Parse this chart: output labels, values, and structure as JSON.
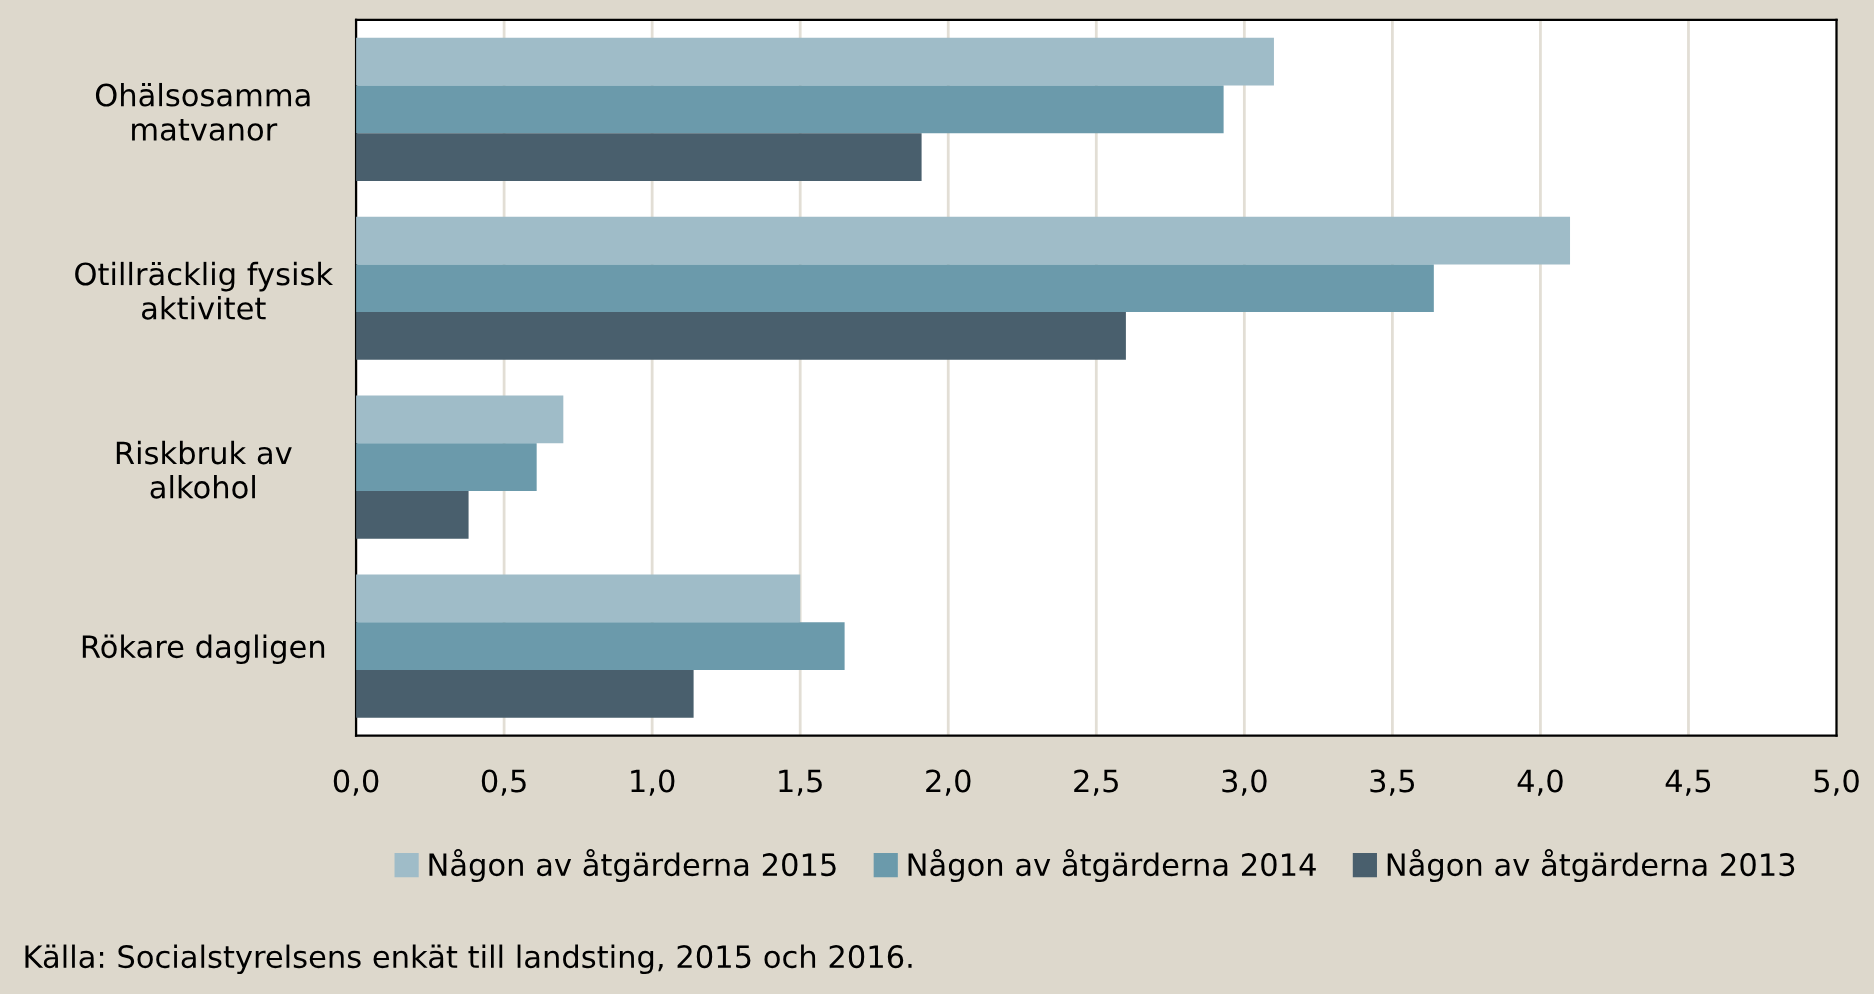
{
  "chart_data": {
    "type": "bar",
    "orientation": "horizontal",
    "categories": [
      "Ohälsosamma\nmatvanor",
      "Otillräcklig fysisk\naktivitet",
      "Riskbruk av\nalkohol",
      "Rökare dagligen"
    ],
    "series": [
      {
        "name": "Någon av åtgärderna 2015",
        "color": "#9fbcc8",
        "values": [
          3.1,
          4.1,
          0.7,
          1.5
        ]
      },
      {
        "name": "Någon av åtgärderna 2014",
        "color": "#6b9aab",
        "values": [
          2.93,
          3.64,
          0.61,
          1.65
        ]
      },
      {
        "name": "Någon av åtgärderna 2013",
        "color": "#495f6d",
        "values": [
          1.91,
          2.6,
          0.38,
          1.14
        ]
      }
    ],
    "xlim": [
      0,
      5
    ],
    "xticks": [
      {
        "value": 0,
        "label": "0,0"
      },
      {
        "value": 0.5,
        "label": "0,5"
      },
      {
        "value": 1,
        "label": "1,0"
      },
      {
        "value": 1.5,
        "label": "1,5"
      },
      {
        "value": 2,
        "label": "2,0"
      },
      {
        "value": 2.5,
        "label": "2,5"
      },
      {
        "value": 3,
        "label": "3,0"
      },
      {
        "value": 3.5,
        "label": "3,5"
      },
      {
        "value": 4,
        "label": "4,0"
      },
      {
        "value": 4.5,
        "label": "4,5"
      },
      {
        "value": 5,
        "label": "5,0"
      }
    ],
    "grid": "x",
    "legend": "bottom",
    "annotations": [
      "Källa: Socialstyrelsens enkät till landsting, 2015 och 2016."
    ]
  }
}
